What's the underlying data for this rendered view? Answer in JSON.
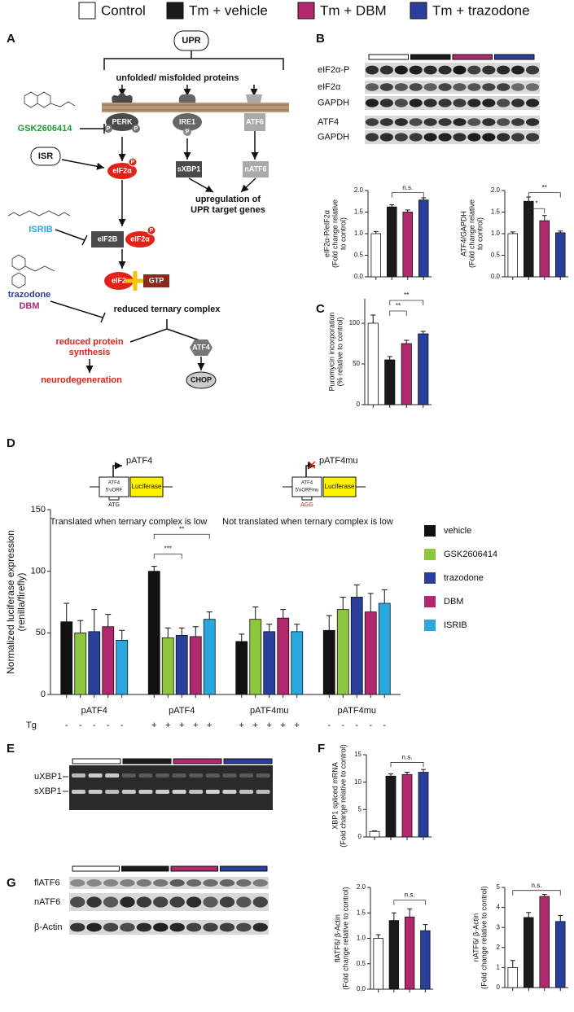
{
  "legend": [
    {
      "label": "Control",
      "color": "#ffffff"
    },
    {
      "label": "Tm + vehicle",
      "color": "#1a1a1a"
    },
    {
      "label": "Tm + DBM",
      "color": "#b0286e"
    },
    {
      "label": "Tm + trazodone",
      "color": "#2a3f9b"
    }
  ],
  "panel_labels": [
    "A",
    "B",
    "C",
    "D",
    "E",
    "F",
    "G"
  ],
  "diagram": {
    "upr": "UPR",
    "trigger": "unfolded/ misfolded proteins",
    "perk": "PERK",
    "ire1": "IRE1",
    "atf6": "ATF6",
    "phospho": "P",
    "gsk": "GSK2606414",
    "isr": "ISR",
    "eif2a": "eIF2α",
    "sxbp1": "sXBP1",
    "natf6": "nATF6",
    "target": [
      "upregulation of",
      "UPR target genes"
    ],
    "isrib": "ISRIB",
    "eif2b": "eIF2B",
    "trazodone": "trazodone",
    "dbm": "DBM",
    "eif2": "eIF2",
    "gtp": "GTP",
    "ternary": "reduced ternary complex",
    "synthesis": [
      "reduced protein",
      "synthesis"
    ],
    "atf4": "ATF4",
    "neuro": "neurodegeneration",
    "chop": "CHOP"
  },
  "blots": {
    "B": [
      "eIF2α-P",
      "eIF2α",
      "GAPDH",
      "ATF4",
      "GAPDH"
    ],
    "E": [
      "uXBP1",
      "sXBP1"
    ],
    "G": [
      "flATF6",
      "nATF6",
      "β-Actin"
    ]
  },
  "constructs": [
    {
      "name": "pATF4",
      "box": [
        "ATF4",
        "5'uORF"
      ],
      "reporter": "Luciferase",
      "codon": "ATG",
      "caption": "Translated when ternary complex is low"
    },
    {
      "name": "pATF4mu",
      "box": [
        "ATF4",
        "5'uORFmu"
      ],
      "reporter": "Luciferase",
      "codon": "AGG",
      "caption": "Not translated when ternary complex is low"
    }
  ],
  "chart_data": [
    {
      "type": "bar",
      "ylabel": [
        "eIF2α-P/eIF2α",
        "(Fold change relative",
        "to control)"
      ],
      "values": [
        1.0,
        1.62,
        1.5,
        1.78
      ],
      "errors": [
        0.05,
        0.05,
        0.05,
        0.05
      ],
      "colors": [
        "#ffffff",
        "#1a1a1a",
        "#b0286e",
        "#2a3f9b"
      ],
      "ylim": [
        0,
        2
      ],
      "yticks": [
        {
          "value": 0,
          "label": "0.0"
        },
        {
          "value": 0.5,
          "label": "0.5"
        },
        {
          "value": 1,
          "label": "1.0"
        },
        {
          "value": 1.5,
          "label": "1.5"
        },
        {
          "value": 2,
          "label": "2.0"
        }
      ],
      "annotations": [
        "n.s."
      ]
    },
    {
      "type": "bar",
      "ylabel": [
        "ATF4/GAPDH",
        "(Fold change relative",
        "to control)"
      ],
      "values": [
        1.0,
        1.75,
        1.3,
        1.02
      ],
      "errors": [
        0.04,
        0.1,
        0.12,
        0.04
      ],
      "colors": [
        "#ffffff",
        "#1a1a1a",
        "#b0286e",
        "#2a3f9b"
      ],
      "ylim": [
        0,
        2
      ],
      "yticks": [
        {
          "value": 0,
          "label": "0.0"
        },
        {
          "value": 0.5,
          "label": "0.5"
        },
        {
          "value": 1,
          "label": "1.0"
        },
        {
          "value": 1.5,
          "label": "1.5"
        },
        {
          "value": 2,
          "label": "2.0"
        }
      ],
      "annotations": [
        "*",
        "**"
      ]
    },
    {
      "type": "bar",
      "ylabel": [
        "Puromycin incorporation",
        "(% relative to control)"
      ],
      "values": [
        100,
        55,
        75,
        87
      ],
      "errors": [
        10,
        4,
        4,
        3
      ],
      "colors": [
        "#ffffff",
        "#1a1a1a",
        "#b0286e",
        "#2a3f9b"
      ],
      "ylim": [
        0,
        130
      ],
      "yticks": [
        0,
        50,
        100
      ],
      "annotations": [
        "**",
        "**"
      ]
    },
    {
      "type": "bar",
      "ylabel": [
        "Normalized luciferase expression",
        "(renilla/firefly)"
      ],
      "categories": [
        "pATF4",
        "pATF4",
        "pATF4mu",
        "pATF4mu"
      ],
      "series": [
        {
          "name": "vehicle",
          "color": "#111111",
          "values": [
            59,
            100,
            43,
            52
          ],
          "errors": [
            15,
            4,
            6,
            12
          ]
        },
        {
          "name": "GSK2606414",
          "color": "#8dc63f",
          "values": [
            50,
            46,
            61,
            69
          ],
          "errors": [
            10,
            8,
            10,
            10
          ]
        },
        {
          "name": "trazodone",
          "color": "#2a3f9b",
          "values": [
            51,
            48,
            51,
            79
          ],
          "errors": [
            18,
            6,
            6,
            10
          ]
        },
        {
          "name": "DBM",
          "color": "#b0286e",
          "values": [
            55,
            47,
            62,
            67
          ],
          "errors": [
            10,
            8,
            7,
            15
          ]
        },
        {
          "name": "ISRIB",
          "color": "#29a8e0",
          "values": [
            44,
            61,
            51,
            74
          ],
          "errors": [
            8,
            6,
            6,
            11
          ]
        }
      ],
      "ylim": [
        0,
        150
      ],
      "yticks": [
        0,
        50,
        100,
        150
      ],
      "tg_label": "Tg",
      "tg": [
        "-",
        "-",
        "-",
        "-",
        "-",
        "+",
        "+",
        "+",
        "+",
        "+",
        "+",
        "+",
        "+",
        "+",
        "+",
        "-",
        "-",
        "-",
        "-",
        "-"
      ],
      "annotations": [
        "***",
        "**"
      ]
    },
    {
      "type": "bar",
      "ylabel": [
        "XBP1 spliced mRNA",
        "(Fold change relative to control)"
      ],
      "values": [
        1,
        11.1,
        11.4,
        11.8
      ],
      "errors": [
        0.1,
        0.4,
        0.4,
        0.5
      ],
      "colors": [
        "#ffffff",
        "#1a1a1a",
        "#b0286e",
        "#2a3f9b"
      ],
      "ylim": [
        0,
        15
      ],
      "yticks": [
        0,
        5,
        10,
        15
      ],
      "annotations": [
        "n.s."
      ]
    },
    {
      "type": "bar",
      "ylabel": [
        "flATF6/ β-Actin",
        "(Fold change relative to control)"
      ],
      "values": [
        1.0,
        1.35,
        1.42,
        1.15
      ],
      "errors": [
        0.07,
        0.15,
        0.16,
        0.12
      ],
      "colors": [
        "#ffffff",
        "#1a1a1a",
        "#b0286e",
        "#2a3f9b"
      ],
      "ylim": [
        0,
        2
      ],
      "yticks": [
        {
          "value": 0,
          "label": "0.0"
        },
        {
          "value": 0.5,
          "label": "0.5"
        },
        {
          "value": 1,
          "label": "1.0"
        },
        {
          "value": 1.5,
          "label": "1.5"
        },
        {
          "value": 2,
          "label": "2.0"
        }
      ],
      "annotations": [
        "n.s."
      ]
    },
    {
      "type": "bar",
      "ylabel": [
        "nATF6/ β-Actin",
        "(Fold change relative to control)"
      ],
      "values": [
        1.0,
        3.5,
        4.55,
        3.3
      ],
      "errors": [
        0.35,
        0.25,
        0.1,
        0.3
      ],
      "colors": [
        "#ffffff",
        "#1a1a1a",
        "#b0286e",
        "#2a3f9b"
      ],
      "ylim": [
        0,
        5
      ],
      "yticks": [
        0,
        1,
        2,
        3,
        4,
        5
      ],
      "annotations": [
        "n.s."
      ]
    }
  ]
}
